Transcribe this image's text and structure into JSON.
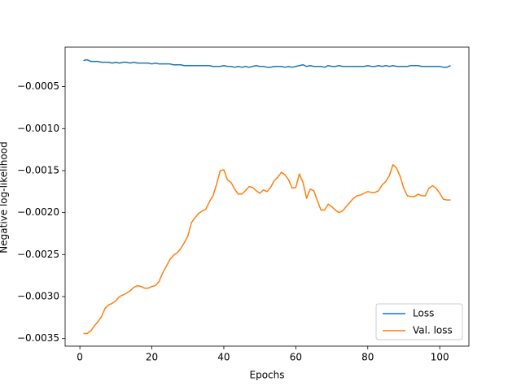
{
  "chart_data": {
    "type": "line",
    "xlabel": "Epochs",
    "ylabel": "Negative log-likelihood",
    "x": [
      1,
      2,
      3,
      4,
      5,
      6,
      7,
      8,
      9,
      10,
      11,
      12,
      13,
      14,
      15,
      16,
      17,
      18,
      19,
      20,
      21,
      22,
      23,
      24,
      25,
      26,
      27,
      28,
      29,
      30,
      31,
      32,
      33,
      34,
      35,
      36,
      37,
      38,
      39,
      40,
      41,
      42,
      43,
      44,
      45,
      46,
      47,
      48,
      49,
      50,
      51,
      52,
      53,
      54,
      55,
      56,
      57,
      58,
      59,
      60,
      61,
      62,
      63,
      64,
      65,
      66,
      67,
      68,
      69,
      70,
      71,
      72,
      73,
      74,
      75,
      76,
      77,
      78,
      79,
      80,
      81,
      82,
      83,
      84,
      85,
      86,
      87,
      88,
      89,
      90,
      91,
      92,
      93,
      94,
      95,
      96,
      97,
      98,
      99,
      100,
      101,
      102,
      103
    ],
    "series": [
      {
        "name": "Loss",
        "color": "#1f77b4",
        "values": [
          -0.00019,
          -0.00018,
          -0.0002,
          -0.0002,
          -0.0002,
          -0.00021,
          -0.00021,
          -0.00021,
          -0.00022,
          -0.00021,
          -0.00022,
          -0.00021,
          -0.00021,
          -0.00022,
          -0.00021,
          -0.00022,
          -0.00022,
          -0.00022,
          -0.00022,
          -0.00023,
          -0.00022,
          -0.00023,
          -0.00023,
          -0.00023,
          -0.00023,
          -0.00024,
          -0.00024,
          -0.00024,
          -0.00025,
          -0.00025,
          -0.00025,
          -0.00025,
          -0.00025,
          -0.00025,
          -0.00025,
          -0.00025,
          -0.00026,
          -0.00026,
          -0.00026,
          -0.00025,
          -0.00026,
          -0.00026,
          -0.00027,
          -0.00026,
          -0.00027,
          -0.00026,
          -0.00027,
          -0.00026,
          -0.00025,
          -0.00026,
          -0.00026,
          -0.00027,
          -0.00027,
          -0.00026,
          -0.00026,
          -0.00026,
          -0.00027,
          -0.00026,
          -0.00027,
          -0.00026,
          -0.00025,
          -0.00024,
          -0.00026,
          -0.00025,
          -0.00026,
          -0.00026,
          -0.00026,
          -0.00027,
          -0.00025,
          -0.00026,
          -0.00026,
          -0.00025,
          -0.00026,
          -0.00026,
          -0.00026,
          -0.00026,
          -0.00026,
          -0.00026,
          -0.00026,
          -0.00025,
          -0.00026,
          -0.00026,
          -0.00025,
          -0.00026,
          -0.00025,
          -0.00026,
          -0.00025,
          -0.00026,
          -0.00026,
          -0.00026,
          -0.00026,
          -0.00025,
          -0.00025,
          -0.00025,
          -0.00026,
          -0.00026,
          -0.00026,
          -0.00026,
          -0.00026,
          -0.00026,
          -0.00027,
          -0.00027,
          -0.00025
        ]
      },
      {
        "name": "Val. loss",
        "color": "#ff7f0e",
        "values": [
          -0.00344,
          -0.00344,
          -0.00341,
          -0.00335,
          -0.0033,
          -0.00324,
          -0.00314,
          -0.0031,
          -0.00308,
          -0.00305,
          -0.003,
          -0.00298,
          -0.00296,
          -0.00293,
          -0.00289,
          -0.00287,
          -0.00288,
          -0.0029,
          -0.0029,
          -0.00288,
          -0.00287,
          -0.00282,
          -0.00272,
          -0.00264,
          -0.00256,
          -0.00251,
          -0.00248,
          -0.00243,
          -0.00236,
          -0.00228,
          -0.00212,
          -0.00206,
          -0.00201,
          -0.00198,
          -0.00196,
          -0.00187,
          -0.0018,
          -0.00166,
          -0.0015,
          -0.00149,
          -0.00161,
          -0.00164,
          -0.00172,
          -0.00178,
          -0.00178,
          -0.00174,
          -0.00169,
          -0.0017,
          -0.00174,
          -0.00177,
          -0.00173,
          -0.00175,
          -0.0017,
          -0.00162,
          -0.00158,
          -0.00152,
          -0.00155,
          -0.00161,
          -0.00171,
          -0.0017,
          -0.00154,
          -0.00164,
          -0.00183,
          -0.00172,
          -0.00174,
          -0.00186,
          -0.00197,
          -0.00197,
          -0.0019,
          -0.00193,
          -0.00197,
          -0.002,
          -0.00198,
          -0.00193,
          -0.00188,
          -0.00183,
          -0.0018,
          -0.00179,
          -0.00177,
          -0.00175,
          -0.00176,
          -0.00176,
          -0.00174,
          -0.00167,
          -0.00163,
          -0.00156,
          -0.00143,
          -0.00147,
          -0.00157,
          -0.00171,
          -0.0018,
          -0.00181,
          -0.00181,
          -0.00178,
          -0.0018,
          -0.0018,
          -0.00171,
          -0.00168,
          -0.00171,
          -0.00177,
          -0.00184,
          -0.00185,
          -0.00185
        ]
      }
    ],
    "xlim": [
      -4.1,
      108.1
    ],
    "ylim": [
      -0.00359,
      -3e-05
    ],
    "xticks": [
      0,
      20,
      40,
      60,
      80,
      100
    ],
    "yticks": [
      {
        "value": -0.0035,
        "label": "−0.0035"
      },
      {
        "value": -0.003,
        "label": "−0.0030"
      },
      {
        "value": -0.0025,
        "label": "−0.0025"
      },
      {
        "value": -0.002,
        "label": "−0.0020"
      },
      {
        "value": -0.0015,
        "label": "−0.0015"
      },
      {
        "value": -0.001,
        "label": "−0.0010"
      },
      {
        "value": -0.0005,
        "label": "−0.0005"
      }
    ],
    "legend": "lower right"
  }
}
